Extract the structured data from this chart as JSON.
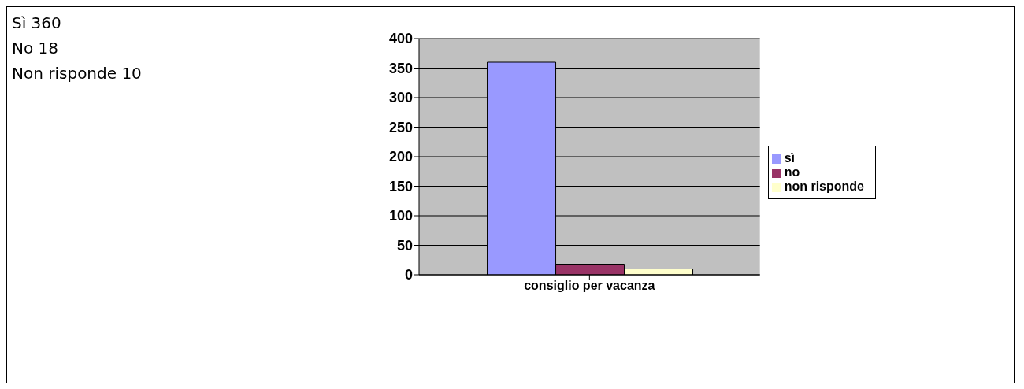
{
  "chart_data": {
    "type": "bar",
    "categories": [
      "consiglio per vacanza"
    ],
    "xlabel": null,
    "series": [
      {
        "name": "sì",
        "color": "#9999ff",
        "values": [
          360
        ]
      },
      {
        "name": "no",
        "color": "#993366",
        "values": [
          18
        ]
      },
      {
        "name": "non risponde",
        "color": "#ffffcc",
        "values": [
          10
        ]
      }
    ],
    "ylim": [
      0,
      400
    ],
    "yticks": [
      0,
      50,
      100,
      150,
      200,
      250,
      300,
      350,
      400
    ],
    "grid": "y",
    "legend": "right",
    "annotations": [
      "Sì 360",
      "No 18",
      "Non risponde 10"
    ]
  }
}
